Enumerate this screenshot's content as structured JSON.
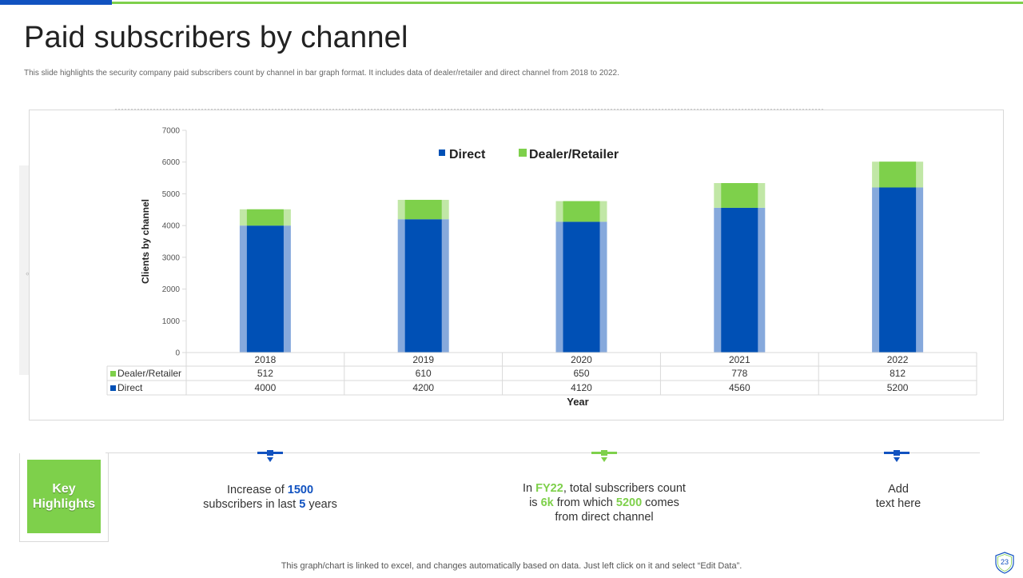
{
  "slide": {
    "title": "Paid subscribers by channel",
    "subtitle": "This slide highlights the security company paid subscribers count by channel in bar graph format. It includes data of dealer/retailer and direct channel from 2018 to 2022.",
    "footer": "This graph/chart is linked to excel,  and changes automatically based on data. Just left click on it and select “Edit Data”.",
    "page_number": "23"
  },
  "colors": {
    "direct": "#0050b5",
    "direct_light": "#86a9dc",
    "dealer": "#7ed04b",
    "dealer_light": "#c1e7a6",
    "accent_blue": "#1152c0",
    "accent_green": "#7ed04b"
  },
  "chart_data": {
    "type": "bar",
    "stacked": true,
    "categories": [
      "2018",
      "2019",
      "2020",
      "2021",
      "2022"
    ],
    "series": [
      {
        "name": "Direct",
        "values": [
          4000,
          4200,
          4120,
          4560,
          5200
        ]
      },
      {
        "name": "Dealer/Retailer",
        "values": [
          512,
          610,
          650,
          778,
          812
        ]
      }
    ],
    "legend": [
      "Direct",
      "Dealer/Retailer"
    ],
    "legend_position": "top",
    "xlabel": "Year",
    "ylabel": "Clients by channel",
    "ylim": [
      0,
      7000
    ],
    "yticks": [
      0,
      1000,
      2000,
      3000,
      4000,
      5000,
      6000,
      7000
    ],
    "data_table": [
      {
        "label": "Dealer/Retailer",
        "values": [
          "512",
          "610",
          "650",
          "778",
          "812"
        ]
      },
      {
        "label": "Direct",
        "values": [
          "4000",
          "4200",
          "4120",
          "4560",
          "5200"
        ]
      }
    ]
  },
  "highlights": {
    "key_label_line1": "Key",
    "key_label_line2": "Highlights",
    "item1": {
      "t1": "Increase of ",
      "b1": "1500",
      "t2": "subscribers in last ",
      "b2": "5",
      "t3": " years"
    },
    "item2": {
      "t1": "In ",
      "b1": "FY22",
      "t2": ", total subscribers count",
      "t3": "is ",
      "b2": "6k",
      "t4": " from which ",
      "b3": "5200",
      "t5": " comes",
      "t6": "from direct channel"
    },
    "item3": {
      "line1": "Add",
      "line2": "text here"
    }
  }
}
